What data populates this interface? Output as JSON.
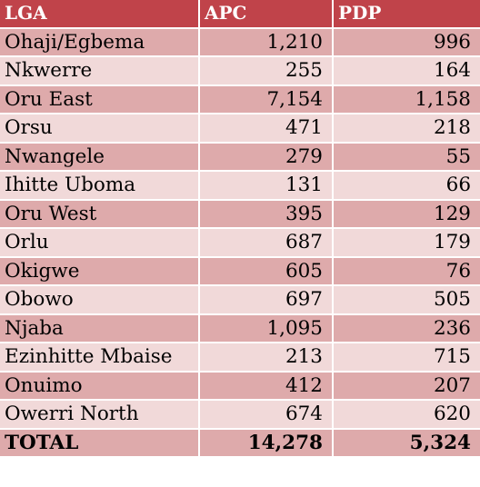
{
  "table": {
    "headers": [
      "LGA",
      "APC",
      "PDP"
    ],
    "rows": [
      {
        "lga": "Ohaji/Egbema",
        "apc": "1,210",
        "pdp": "996"
      },
      {
        "lga": "Nkwerre",
        "apc": "255",
        "pdp": "164"
      },
      {
        "lga": "Oru East",
        "apc": "7,154",
        "pdp": "1,158"
      },
      {
        "lga": "Orsu",
        "apc": "471",
        "pdp": "218"
      },
      {
        "lga": "Nwangele",
        "apc": "279",
        "pdp": "55"
      },
      {
        "lga": "Ihitte Uboma",
        "apc": "131",
        "pdp": "66"
      },
      {
        "lga": "Oru West",
        "apc": "395",
        "pdp": "129"
      },
      {
        "lga": "Orlu",
        "apc": "687",
        "pdp": "179"
      },
      {
        "lga": "Okigwe",
        "apc": "605",
        "pdp": "76"
      },
      {
        "lga": "Obowo",
        "apc": "697",
        "pdp": "505"
      },
      {
        "lga": "Njaba",
        "apc": "1,095",
        "pdp": "236"
      },
      {
        "lga": "Ezinhitte Mbaise",
        "apc": "213",
        "pdp": "715"
      },
      {
        "lga": "Onuimo",
        "apc": "412",
        "pdp": "207"
      },
      {
        "lga": "Owerri North",
        "apc": "674",
        "pdp": "620"
      }
    ],
    "total": {
      "label": "TOTAL",
      "apc": "14,278",
      "pdp": "5,324"
    }
  },
  "colors": {
    "header_bg": "#c0434a",
    "header_text": "#ffffff",
    "row_dark": "#deaaab",
    "row_light": "#f1d9d9"
  }
}
